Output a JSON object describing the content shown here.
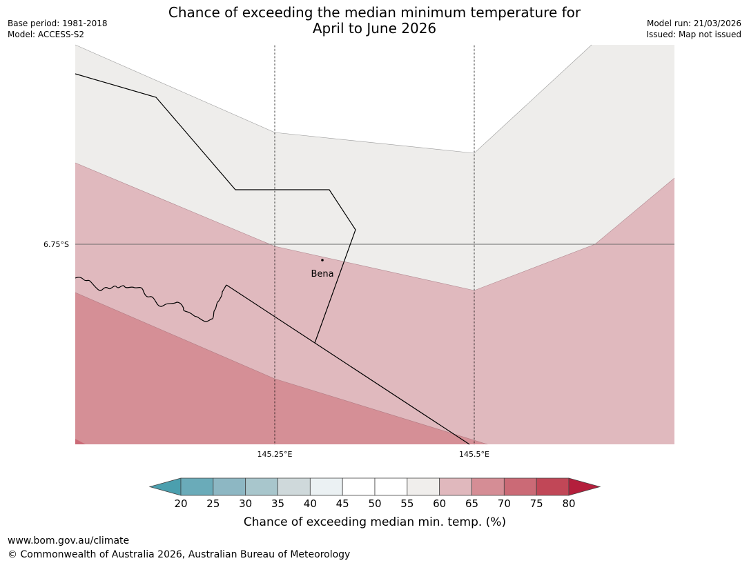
{
  "header": {
    "title_line1": "Chance of exceeding the median minimum temperature for",
    "title_line2": "April to June 2026",
    "base_period": "Base period: 1981-2018",
    "model": "Model: ACCESS-S2",
    "model_run": "Model run: 21/03/2026",
    "issued": "Issued: Map not issued"
  },
  "map": {
    "latitude_label": "6.75°S",
    "longitude_labels": [
      "145.25°E",
      "145.5°E"
    ],
    "place_label": "Bena",
    "zones": [
      {
        "name": "60-65 percent",
        "color": "#e0b9be"
      },
      {
        "name": "55-60 percent",
        "color": "#eeedeb"
      },
      {
        "name": "65-70 percent",
        "color": "#d58f96"
      },
      {
        "name": "70-75 percent",
        "color": "#cb6b77"
      }
    ]
  },
  "legend": {
    "title": "Chance of exceeding median min. temp. (%)",
    "ticks": [
      "20",
      "25",
      "30",
      "35",
      "40",
      "45",
      "50",
      "55",
      "60",
      "65",
      "70",
      "75",
      "80"
    ],
    "colors": [
      "#6aabb9",
      "#8db7c3",
      "#a8c6cc",
      "#cfd9db",
      "#ebf1f3",
      "#ffffff",
      "#ffffff",
      "#f0eeec",
      "#e0b8bd",
      "#d58d95",
      "#cb6a76",
      "#c14757"
    ],
    "low_color": "#4b9fae",
    "high_color": "#b41f3c"
  },
  "footer": {
    "url": "www.bom.gov.au/climate",
    "copyright": "© Commonwealth of Australia 2026, Australian Bureau of Meteorology"
  }
}
